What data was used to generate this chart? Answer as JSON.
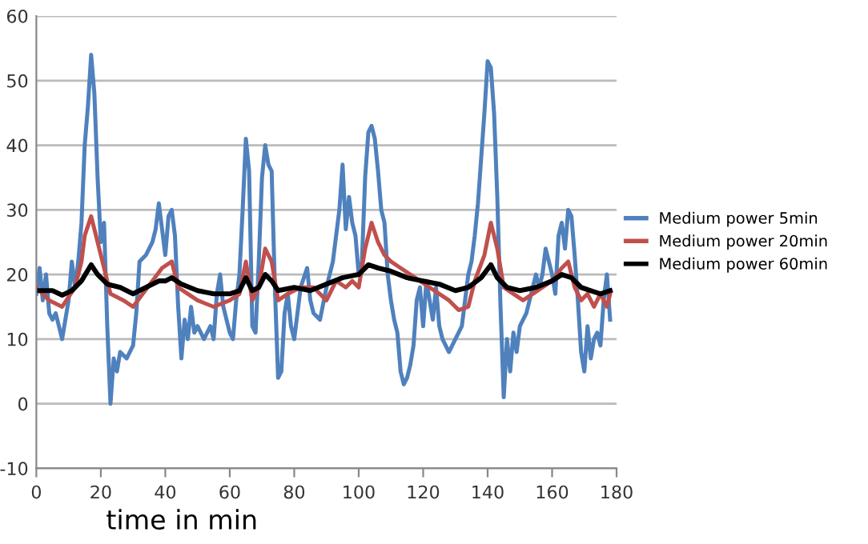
{
  "chart_data": {
    "type": "line",
    "xlabel": "time in min",
    "xlim": [
      0,
      180
    ],
    "xticks": [
      0,
      20,
      40,
      60,
      80,
      100,
      120,
      140,
      160,
      180
    ],
    "ylim": [
      -10,
      60
    ],
    "yticks": [
      -10,
      0,
      10,
      20,
      30,
      40,
      50,
      60
    ],
    "grid": "y",
    "legend": "right",
    "marker": "none",
    "line_style": "solid",
    "series": [
      {
        "name": "Medium power 5min",
        "color": "#4f81bd",
        "x": [
          0,
          1,
          2,
          3,
          4,
          5,
          6,
          7,
          8,
          9,
          10,
          11,
          12,
          13,
          14,
          15,
          16,
          17,
          18,
          19,
          20,
          21,
          22,
          23,
          24,
          25,
          26,
          28,
          30,
          31,
          32,
          34,
          36,
          37,
          38,
          39,
          40,
          41,
          42,
          43,
          44,
          45,
          46,
          47,
          48,
          49,
          50,
          52,
          54,
          55,
          56,
          57,
          58,
          60,
          61,
          62,
          63,
          64,
          65,
          66,
          67,
          68,
          69,
          70,
          71,
          72,
          73,
          74,
          75,
          76,
          77,
          78,
          79,
          80,
          81,
          82,
          84,
          85,
          86,
          88,
          90,
          92,
          94,
          95,
          96,
          97,
          98,
          99,
          100,
          101,
          102,
          103,
          104,
          105,
          106,
          107,
          108,
          109,
          110,
          111,
          112,
          113,
          114,
          115,
          116,
          117,
          118,
          119,
          120,
          121,
          122,
          123,
          124,
          125,
          126,
          128,
          130,
          132,
          133,
          134,
          135,
          136,
          137,
          138,
          139,
          140,
          141,
          142,
          143,
          144,
          145,
          146,
          147,
          148,
          149,
          150,
          152,
          154,
          155,
          156,
          157,
          158,
          160,
          161,
          162,
          163,
          164,
          165,
          166,
          167,
          168,
          169,
          170,
          171,
          172,
          173,
          174,
          175,
          176,
          177,
          178
        ],
        "values": [
          17,
          21,
          16,
          20,
          14,
          13,
          14,
          12,
          10,
          13,
          16,
          22,
          18,
          22,
          28,
          40,
          46,
          54,
          48,
          35,
          25,
          28,
          12,
          0,
          7,
          5,
          8,
          7,
          9,
          14,
          22,
          23,
          25,
          27,
          31,
          27,
          23,
          29,
          30,
          26,
          15,
          7,
          13,
          10,
          15,
          11,
          12,
          10,
          12,
          10,
          17,
          20,
          15,
          11,
          10,
          16,
          20,
          30,
          41,
          36,
          12,
          11,
          22,
          35,
          40,
          37,
          36,
          18,
          4,
          5,
          14,
          17,
          12,
          10,
          14,
          18,
          21,
          16,
          14,
          13,
          18,
          22,
          30,
          37,
          27,
          32,
          28,
          26,
          20,
          22,
          35,
          42,
          43,
          41,
          36,
          30,
          28,
          20,
          16,
          13,
          11,
          5,
          3,
          4,
          6,
          9,
          16,
          18,
          12,
          19,
          16,
          13,
          18,
          12,
          10,
          8,
          10,
          12,
          16,
          20,
          22,
          26,
          31,
          38,
          45,
          53,
          52,
          45,
          32,
          15,
          1,
          10,
          5,
          11,
          8,
          12,
          14,
          18,
          20,
          18,
          20,
          24,
          20,
          17,
          26,
          28,
          24,
          30,
          29,
          23,
          16,
          8,
          5,
          12,
          7,
          10,
          11,
          9,
          16,
          20,
          13
        ]
      },
      {
        "name": "Medium power 20min",
        "color": "#c0504d",
        "x": [
          0,
          4,
          8,
          12,
          14,
          15,
          17,
          19,
          21,
          23,
          27,
          30,
          33,
          36,
          39,
          42,
          44,
          47,
          50,
          55,
          60,
          63,
          65,
          67,
          69,
          71,
          73,
          75,
          78,
          82,
          86,
          90,
          93,
          96,
          98,
          100,
          102,
          104,
          106,
          108,
          110,
          113,
          116,
          119,
          122,
          125,
          128,
          131,
          134,
          136,
          139,
          141,
          143,
          145,
          148,
          151,
          154,
          157,
          160,
          163,
          165,
          167,
          169,
          171,
          173,
          175,
          177,
          178
        ],
        "values": [
          18,
          16,
          15,
          18,
          22,
          26,
          29,
          25,
          21,
          17,
          16,
          15,
          17,
          19,
          21,
          22,
          18,
          17,
          16,
          15,
          16,
          17,
          22,
          16,
          18,
          24,
          22,
          16,
          17,
          18,
          18,
          16,
          19,
          18,
          19,
          18,
          24,
          28,
          25,
          23,
          22,
          21,
          20,
          19,
          18,
          17,
          16,
          14.5,
          15,
          19,
          23,
          28,
          24,
          18,
          17,
          16,
          17,
          18,
          19,
          21,
          22,
          18,
          16,
          17,
          15,
          17,
          15,
          17
        ]
      },
      {
        "name": "Medium power 60min",
        "color": "#000000",
        "x": [
          0,
          5,
          8,
          11,
          14,
          17,
          19,
          22,
          26,
          30,
          34,
          38,
          40,
          42,
          45,
          50,
          55,
          60,
          63,
          65,
          67,
          69,
          71,
          73,
          75,
          80,
          85,
          90,
          95,
          100,
          103,
          106,
          110,
          115,
          120,
          125,
          130,
          134,
          138,
          141,
          143,
          146,
          150,
          155,
          160,
          163,
          166,
          169,
          172,
          175,
          178
        ],
        "values": [
          17.5,
          17.5,
          16.8,
          17.5,
          19,
          21.5,
          20,
          18.5,
          18,
          17,
          18,
          19,
          19,
          19.5,
          18.5,
          17.5,
          17,
          17,
          17.5,
          19.5,
          17.5,
          18,
          20,
          19,
          17.5,
          18,
          17.5,
          18.5,
          19.5,
          20,
          21.5,
          21,
          20.5,
          19.5,
          19,
          18.5,
          17.5,
          18,
          19.5,
          21.5,
          19.5,
          18,
          17.5,
          18,
          19,
          20,
          19.5,
          18,
          17.5,
          17,
          17.5
        ]
      }
    ]
  }
}
